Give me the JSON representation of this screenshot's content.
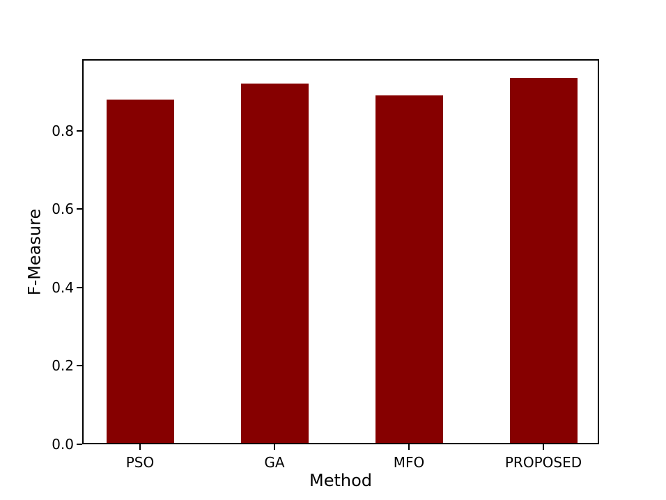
{
  "chart_data": {
    "type": "bar",
    "title": "",
    "categories": [
      "PSO",
      "GA",
      "MFO",
      "PROPOSED"
    ],
    "values": [
      0.88,
      0.92,
      0.89,
      0.935
    ],
    "xlabel": "Method",
    "ylabel": "F-Measure",
    "ylim": [
      0,
      0.98
    ],
    "yticks": [
      0.0,
      0.2,
      0.4,
      0.6,
      0.8
    ],
    "ytick_labels": [
      "0.0",
      "0.2",
      "0.4",
      "0.6",
      "0.8"
    ],
    "bar_color": "#860000",
    "axis_color": "#000000",
    "background_color": "#ffffff",
    "grid": false,
    "legend": null
  }
}
